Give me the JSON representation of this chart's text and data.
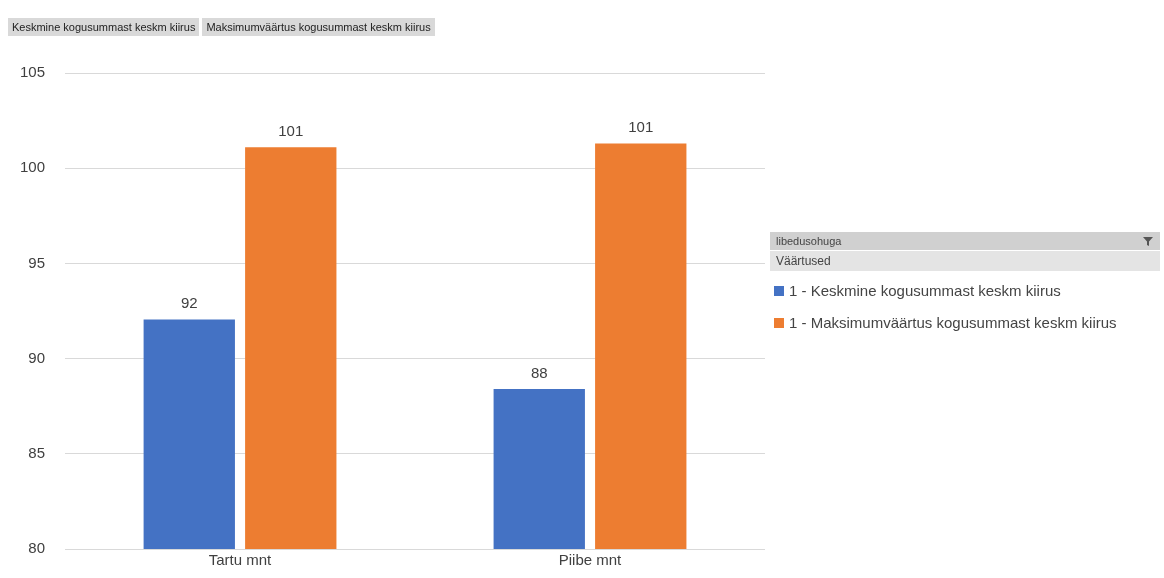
{
  "chart_data": {
    "type": "bar",
    "categories": [
      "Tartu mnt",
      "Piibe mnt"
    ],
    "series": [
      {
        "name": "1 - Keskmine kogusummast keskm kiirus",
        "color": "#4472c4",
        "values": [
          92.05,
          88.4
        ],
        "value_labels": [
          "92",
          "88"
        ]
      },
      {
        "name": "1 - Maksimumväärtus kogusummast keskm kiirus",
        "color": "#ed7d31",
        "values": [
          101.1,
          101.3
        ],
        "value_labels": [
          "101",
          "101"
        ]
      }
    ],
    "ylim": [
      80,
      105
    ],
    "yticks": [
      80,
      85,
      90,
      95,
      100,
      105
    ],
    "grid": "y",
    "legend": "right",
    "legend_title": "libedusohuga",
    "annotations": [
      "Keskmine kogusummast keskm kiirus",
      "Maksimumväärtus kogusummast keskm kiirus",
      "Väärtused"
    ]
  }
}
